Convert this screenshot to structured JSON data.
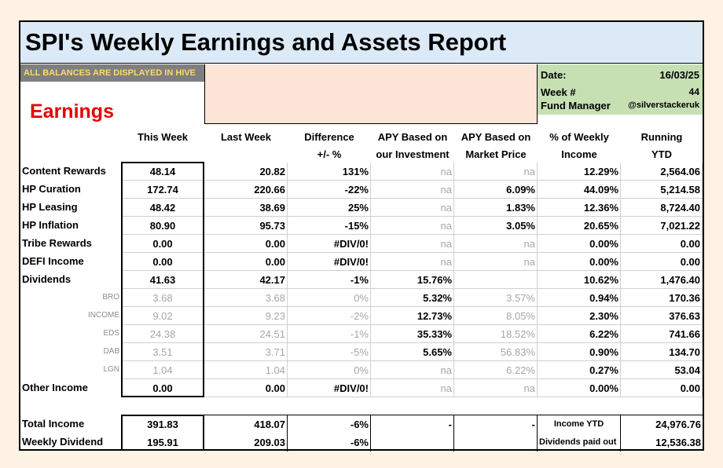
{
  "title": "SPI's Weekly Earnings and Assets Report",
  "notice": "ALL BALANCES ARE DISPLAYED IN HIVE",
  "info": {
    "date_label": "Date:",
    "date": "16/03/25",
    "week_label": "Week #",
    "week": "44",
    "manager_label": "Fund Manager",
    "manager": "@silverstackeruk"
  },
  "section_title": "Earnings",
  "headers": {
    "this_week": "This Week",
    "last_week": "Last Week",
    "diff_1": "Difference",
    "diff_2": "+/- %",
    "apy_inv_1": "APY Based on",
    "apy_inv_2": "our Investment",
    "apy_mkt_1": "APY Based on",
    "apy_mkt_2": "Market Price",
    "pct_1": "% of Weekly",
    "pct_2": "Income",
    "ytd_1": "Running",
    "ytd_2": "YTD"
  },
  "rows": [
    {
      "label": "Content Rewards",
      "sub": false,
      "this": "48.14",
      "last": "20.82",
      "diff": "131%",
      "apy_inv": "na",
      "apy_mkt": "na",
      "pct": "12.29%",
      "ytd": "2,564.06"
    },
    {
      "label": "HP Curation",
      "sub": false,
      "this": "172.74",
      "last": "220.66",
      "diff": "-22%",
      "apy_inv": "na",
      "apy_mkt": "6.09%",
      "pct": "44.09%",
      "ytd": "5,214.58"
    },
    {
      "label": "HP Leasing",
      "sub": false,
      "this": "48.42",
      "last": "38.69",
      "diff": "25%",
      "apy_inv": "na",
      "apy_mkt": "1.83%",
      "pct": "12.36%",
      "ytd": "8,724.40"
    },
    {
      "label": "HP Inflation",
      "sub": false,
      "this": "80.90",
      "last": "95.73",
      "diff": "-15%",
      "apy_inv": "na",
      "apy_mkt": "3.05%",
      "pct": "20.65%",
      "ytd": "7,021.22"
    },
    {
      "label": "Tribe Rewards",
      "sub": false,
      "this": "0.00",
      "last": "0.00",
      "diff": "#DIV/0!",
      "apy_inv": "na",
      "apy_mkt": "na",
      "pct": "0.00%",
      "ytd": "0.00"
    },
    {
      "label": "DEFI Income",
      "sub": false,
      "this": "0.00",
      "last": "0.00",
      "diff": "#DIV/0!",
      "apy_inv": "na",
      "apy_mkt": "na",
      "pct": "0.00%",
      "ytd": "0.00"
    },
    {
      "label": "Dividends",
      "sub": false,
      "this": "41.63",
      "last": "42.17",
      "diff": "-1%",
      "apy_inv": "15.76%",
      "apy_mkt": "",
      "pct": "10.62%",
      "ytd": "1,476.40"
    },
    {
      "label": "BRO",
      "sub": true,
      "this": "3.68",
      "last": "3.68",
      "diff": "0%",
      "apy_inv": "5.32%",
      "apy_mkt": "3.57%",
      "pct": "0.94%",
      "ytd": "170.36"
    },
    {
      "label": "INCOME",
      "sub": true,
      "this": "9.02",
      "last": "9.23",
      "diff": "-2%",
      "apy_inv": "12.73%",
      "apy_mkt": "8.05%",
      "pct": "2.30%",
      "ytd": "376.63"
    },
    {
      "label": "EDS",
      "sub": true,
      "this": "24.38",
      "last": "24.51",
      "diff": "-1%",
      "apy_inv": "35.33%",
      "apy_mkt": "18.52%",
      "pct": "6.22%",
      "ytd": "741.66"
    },
    {
      "label": "DAB",
      "sub": true,
      "this": "3.51",
      "last": "3.71",
      "diff": "-5%",
      "apy_inv": "5.65%",
      "apy_mkt": "56.83%",
      "pct": "0.90%",
      "ytd": "134.70"
    },
    {
      "label": "LGN",
      "sub": true,
      "this": "1.04",
      "last": "1.04",
      "diff": "0%",
      "apy_inv": "na",
      "apy_mkt": "6.22%",
      "pct": "0.27%",
      "ytd": "53.04"
    },
    {
      "label": "Other Income",
      "sub": false,
      "this": "0.00",
      "last": "0.00",
      "diff": "#DIV/0!",
      "apy_inv": "na",
      "apy_mkt": "na",
      "pct": "0.00%",
      "ytd": "0.00"
    }
  ],
  "totals": [
    {
      "label": "Total Income",
      "this": "391.83",
      "last": "418.07",
      "diff": "-6%",
      "apy_inv": "-",
      "apy_mkt": "-",
      "pct": "Income YTD",
      "ytd": "24,976.76"
    },
    {
      "label": "Weekly Dividend",
      "this": "195.91",
      "last": "209.03",
      "diff": "-6%",
      "apy_inv": "",
      "apy_mkt": "",
      "pct": "Dividends paid out",
      "ytd": "12,536.38"
    }
  ]
}
